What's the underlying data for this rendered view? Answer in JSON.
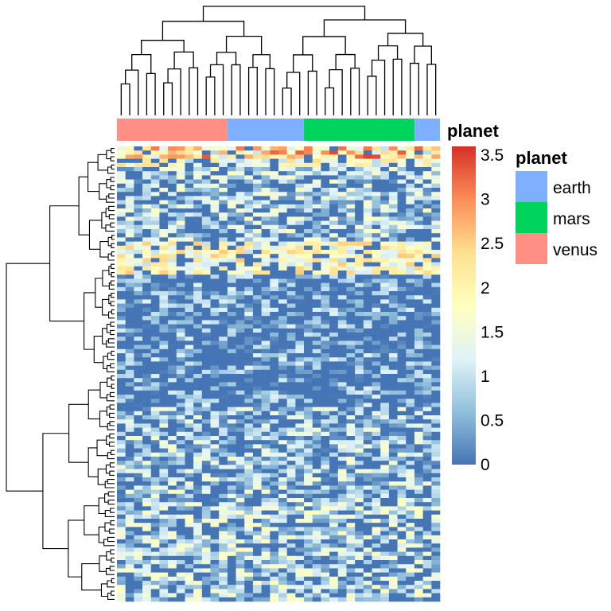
{
  "chart_data": {
    "type": "heatmap",
    "annotation_title": "planet",
    "column_annotation": {
      "title": "planet",
      "groups": [
        {
          "name": "venus",
          "count": 13
        },
        {
          "name": "earth",
          "count": 9
        },
        {
          "name": "mars",
          "count": 13
        },
        {
          "name": "earth",
          "count": 3
        }
      ]
    },
    "legend": {
      "title": "planet",
      "entries": [
        {
          "label": "earth",
          "color": "#7FB0FF"
        },
        {
          "label": "mars",
          "color": "#00D45C"
        },
        {
          "label": "venus",
          "color": "#FF8F85"
        }
      ]
    },
    "color_scale": {
      "min": 0,
      "max": 3.6,
      "ticks": [
        "0",
        "0.5",
        "1",
        "1.5",
        "2",
        "2.5",
        "3",
        "3.5"
      ],
      "tick_values": [
        0,
        0.5,
        1,
        1.5,
        2,
        2.5,
        3,
        3.5
      ],
      "colors": [
        "#4575B4",
        "#91BFDB",
        "#E0F3F8",
        "#FFFFBF",
        "#FEE090",
        "#FC8D59",
        "#D73027"
      ]
    },
    "n_rows": 110,
    "n_cols": 38,
    "row_bands": [
      {
        "rows": [
          0,
          4
        ],
        "mean": 1.6
      },
      {
        "rows": [
          5,
          22
        ],
        "mean": 0.9
      },
      {
        "rows": [
          23,
          30
        ],
        "mean": 1.7
      },
      {
        "rows": [
          31,
          62
        ],
        "mean": 0.35
      },
      {
        "rows": [
          63,
          85
        ],
        "mean": 0.8
      },
      {
        "rows": [
          86,
          109
        ],
        "mean": 1.0
      }
    ],
    "row_dendrogram": true,
    "column_dendrogram": true
  }
}
